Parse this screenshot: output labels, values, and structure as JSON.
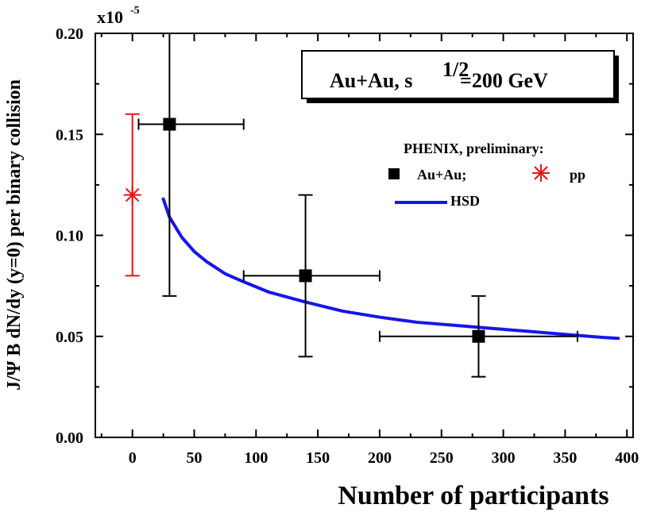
{
  "chart_data": {
    "type": "scatter",
    "title": "Au+Au,  s1/2=200 GeV",
    "title_parts": {
      "main": "Au+Au,  s",
      "superscript": "1/2",
      "tail": "=200 GeV"
    },
    "xlabel": "Number of participants",
    "ylabel": "J/Ψ B dN/dy (y=0) per binary collision",
    "y_multiplier": "x10",
    "y_multiplier_exp": "-5",
    "xlim": [
      -30,
      405
    ],
    "ylim": [
      0,
      0.2
    ],
    "xticks": [
      0,
      50,
      100,
      150,
      200,
      250,
      300,
      350,
      400
    ],
    "xtick_labels": [
      "0",
      "50",
      "100",
      "150",
      "200",
      "250",
      "300",
      "350",
      "400"
    ],
    "yticks": [
      0,
      0.05,
      0.1,
      0.15,
      0.2
    ],
    "ytick_labels": [
      "0.00",
      "0.05",
      "0.10",
      "0.15",
      "0.20"
    ],
    "legend_header": "PHENIX, preliminary:",
    "series": [
      {
        "name": "Au+Au;",
        "kind": "points",
        "marker": "square",
        "color": "#000000",
        "points": [
          {
            "x": 30,
            "y": 0.155,
            "xerr": [
              5,
              90
            ],
            "yerr": [
              0.07,
              0.2
            ]
          },
          {
            "x": 140,
            "y": 0.08,
            "xerr": [
              90,
              200
            ],
            "yerr": [
              0.04,
              0.12
            ]
          },
          {
            "x": 280,
            "y": 0.05,
            "xerr": [
              200,
              360
            ],
            "yerr": [
              0.03,
              0.07
            ]
          }
        ]
      },
      {
        "name": "pp",
        "kind": "points",
        "marker": "asterisk",
        "color": "#ee1111",
        "points": [
          {
            "x": 0,
            "y": 0.12,
            "yerr": [
              0.08,
              0.16
            ]
          }
        ]
      },
      {
        "name": "HSD",
        "kind": "line",
        "color": "#1515ee",
        "x": [
          25,
          30,
          40,
          50,
          60,
          75,
          90,
          110,
          140,
          170,
          200,
          230,
          260,
          290,
          320,
          350,
          380,
          393
        ],
        "y": [
          0.118,
          0.109,
          0.099,
          0.092,
          0.087,
          0.081,
          0.077,
          0.072,
          0.067,
          0.0625,
          0.0595,
          0.057,
          0.0555,
          0.054,
          0.0525,
          0.051,
          0.0495,
          0.049
        ]
      }
    ]
  }
}
